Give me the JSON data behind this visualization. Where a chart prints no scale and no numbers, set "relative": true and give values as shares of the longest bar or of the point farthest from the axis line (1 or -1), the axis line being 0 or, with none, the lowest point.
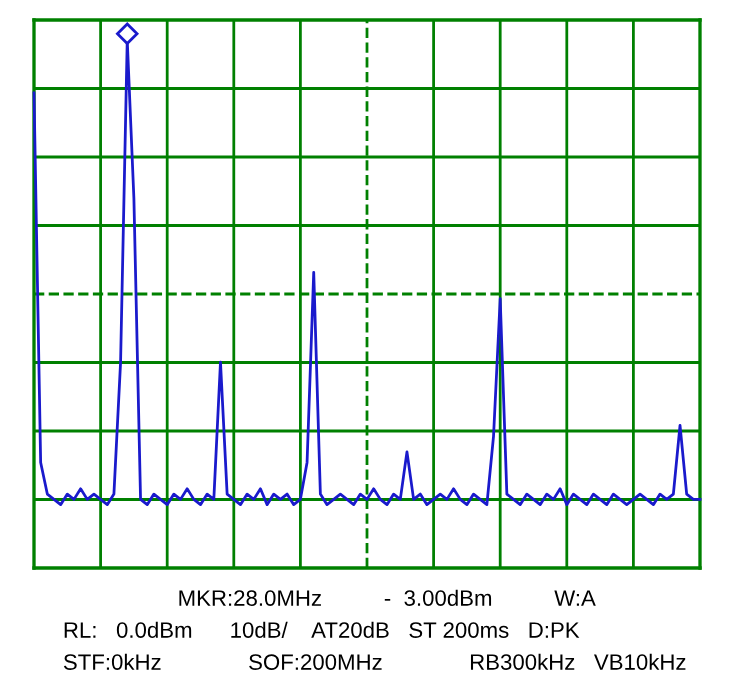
{
  "chart_data": {
    "type": "line",
    "relative": true,
    "grid": true,
    "legend": false,
    "categories": [
      null,
      null,
      null,
      null,
      null,
      null,
      null,
      null,
      null,
      null,
      null,
      null,
      null,
      null,
      null,
      null,
      null,
      null,
      null,
      null,
      null,
      null,
      null,
      null,
      null,
      null,
      null,
      null,
      null,
      null,
      null,
      null,
      null,
      null,
      null,
      null,
      null,
      null,
      null,
      null,
      null,
      null,
      null,
      null,
      null,
      null,
      null,
      null,
      null,
      null,
      null,
      null,
      null,
      null,
      null,
      null,
      null,
      null,
      null,
      null,
      null,
      null,
      null,
      null,
      null,
      null,
      null,
      null,
      null,
      null,
      null,
      null,
      null,
      null,
      null,
      null,
      null,
      null,
      null,
      null,
      null,
      null,
      null,
      null,
      null,
      null,
      null,
      null,
      null,
      null,
      null,
      null,
      null,
      null,
      null,
      null,
      null,
      null,
      null,
      null,
      null
    ],
    "series": [
      {
        "color": "#1a1acc",
        "values": [
          0.9,
          0.2,
          0.14,
          0.13,
          0.12,
          0.14,
          0.13,
          0.15,
          0.13,
          0.14,
          0.13,
          0.12,
          0.14,
          0.39,
          1.0,
          0.7,
          0.13,
          0.12,
          0.14,
          0.13,
          0.12,
          0.14,
          0.13,
          0.15,
          0.13,
          0.12,
          0.14,
          0.13,
          0.39,
          0.14,
          0.13,
          0.12,
          0.14,
          0.13,
          0.15,
          0.12,
          0.14,
          0.13,
          0.14,
          0.12,
          0.13,
          0.2,
          0.56,
          0.14,
          0.12,
          0.13,
          0.14,
          0.13,
          0.12,
          0.14,
          0.13,
          0.15,
          0.13,
          0.12,
          0.14,
          0.13,
          0.22,
          0.13,
          0.14,
          0.12,
          0.13,
          0.14,
          0.13,
          0.15,
          0.13,
          0.12,
          0.14,
          0.13,
          0.12,
          0.25,
          0.51,
          0.14,
          0.13,
          0.12,
          0.14,
          0.13,
          0.12,
          0.14,
          0.13,
          0.15,
          0.12,
          0.14,
          0.13,
          0.12,
          0.14,
          0.13,
          0.12,
          0.14,
          0.13,
          0.12,
          0.13,
          0.14,
          0.13,
          0.12,
          0.14,
          0.13,
          0.14,
          0.27,
          0.14,
          0.13,
          0.13
        ]
      }
    ],
    "ref_lines": [
      {
        "axis": "y",
        "value": 0.519,
        "color": "#008000",
        "line_style": "dashed"
      }
    ],
    "annotations": [
      "MKR:28.0MHz          -  3.00dBm          W:A",
      "RL:   0.0dBm      10dB/    AT20dB   ST 200ms   D:PK",
      "STF:0kHz              SOF:200MHz              RB300kHz   VB10kHz"
    ]
  }
}
